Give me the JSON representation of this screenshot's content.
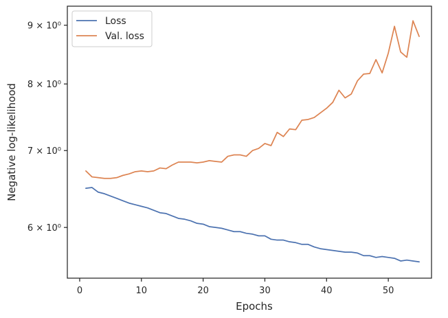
{
  "chart_data": {
    "type": "line",
    "xlabel": "Epochs",
    "ylabel": "Negative log-likelihood",
    "yscale": "log",
    "xlim": [
      -2,
      57
    ],
    "ylim": [
      5.42,
      9.35
    ],
    "x_ticks": [
      0,
      10,
      20,
      30,
      40,
      50
    ],
    "y_ticks": [
      {
        "value": 6,
        "label": "6 × 10⁰"
      },
      {
        "value": 7,
        "label": "7 × 10⁰"
      },
      {
        "value": 8,
        "label": "8 × 10⁰"
      },
      {
        "value": 9,
        "label": "9 × 10⁰"
      }
    ],
    "grid": false,
    "legend_position": "top-left",
    "x": [
      1,
      2,
      3,
      4,
      5,
      6,
      7,
      8,
      9,
      10,
      11,
      12,
      13,
      14,
      15,
      16,
      17,
      18,
      19,
      20,
      21,
      22,
      23,
      24,
      25,
      26,
      27,
      28,
      29,
      30,
      31,
      32,
      33,
      34,
      35,
      36,
      37,
      38,
      39,
      40,
      41,
      42,
      43,
      44,
      45,
      46,
      47,
      48,
      49,
      50,
      51,
      52,
      53,
      54,
      55
    ],
    "series": [
      {
        "name": "Loss",
        "color": "#4c72b0",
        "values": [
          6.49,
          6.5,
          6.44,
          6.42,
          6.39,
          6.36,
          6.33,
          6.3,
          6.28,
          6.26,
          6.24,
          6.21,
          6.18,
          6.17,
          6.14,
          6.11,
          6.1,
          6.08,
          6.05,
          6.04,
          6.01,
          6.0,
          5.99,
          5.97,
          5.95,
          5.95,
          5.93,
          5.92,
          5.9,
          5.9,
          5.86,
          5.85,
          5.85,
          5.83,
          5.82,
          5.8,
          5.8,
          5.77,
          5.75,
          5.74,
          5.73,
          5.72,
          5.71,
          5.71,
          5.7,
          5.67,
          5.67,
          5.65,
          5.66,
          5.65,
          5.64,
          5.61,
          5.62,
          5.61,
          5.6
        ]
      },
      {
        "name": "Val. loss",
        "color": "#dd8452",
        "values": [
          6.72,
          6.64,
          6.63,
          6.62,
          6.62,
          6.63,
          6.66,
          6.68,
          6.71,
          6.72,
          6.71,
          6.72,
          6.76,
          6.75,
          6.8,
          6.84,
          6.84,
          6.84,
          6.83,
          6.84,
          6.86,
          6.85,
          6.84,
          6.92,
          6.94,
          6.94,
          6.92,
          7.0,
          7.03,
          7.1,
          7.07,
          7.26,
          7.2,
          7.31,
          7.3,
          7.44,
          7.45,
          7.48,
          7.55,
          7.62,
          7.71,
          7.9,
          7.78,
          7.84,
          8.05,
          8.16,
          8.17,
          8.4,
          8.18,
          8.51,
          8.98,
          8.53,
          8.44,
          9.08,
          8.8
        ]
      }
    ]
  }
}
